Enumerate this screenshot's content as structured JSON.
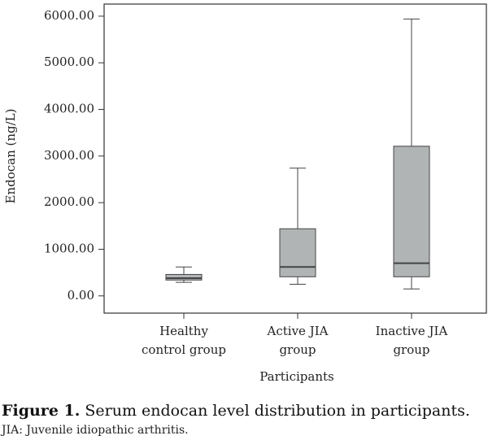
{
  "chart_data": {
    "type": "box",
    "y_label": "Endocan (ng/L)",
    "x_label": "Participants",
    "categories": [
      [
        "Healthy",
        "control group"
      ],
      [
        "Active JIA",
        "group"
      ],
      [
        "Inactive JIA",
        "group"
      ]
    ],
    "boxes": [
      {
        "min": 290,
        "q1": 340,
        "median": 380,
        "q3": 460,
        "max": 620
      },
      {
        "min": 250,
        "q1": 410,
        "median": 620,
        "q3": 1440,
        "max": 2740
      },
      {
        "min": 150,
        "q1": 410,
        "median": 700,
        "q3": 3210,
        "max": 5940
      }
    ],
    "color": "#b1b4b5",
    "ylim": [
      -370,
      6260
    ],
    "yticks": [
      {
        "value": 0,
        "label": "0.00"
      },
      {
        "value": 1000,
        "label": "1000.00"
      },
      {
        "value": 2000,
        "label": "2000.00"
      },
      {
        "value": 3000,
        "label": "3000.00"
      },
      {
        "value": 4000,
        "label": "4000.00"
      },
      {
        "value": 5000,
        "label": "5000.00"
      },
      {
        "value": 6000,
        "label": "6000.00"
      }
    ]
  },
  "caption": {
    "label": "Figure 1.",
    "text": "Serum endocan level distribution in participants.",
    "note": "JIA: Juvenile idiopathic arthritis."
  }
}
